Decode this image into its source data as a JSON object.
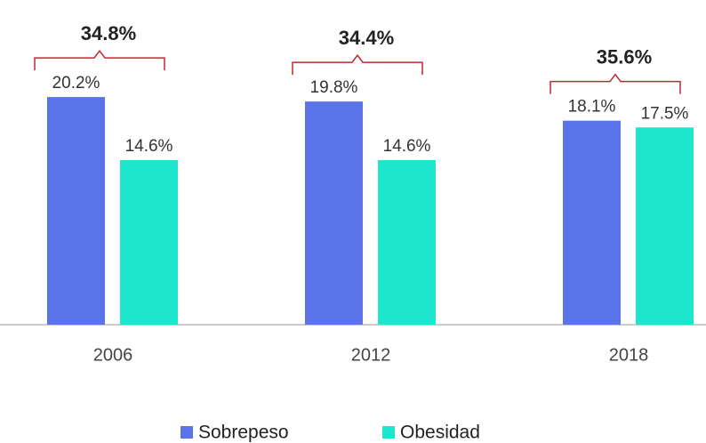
{
  "chart_data": {
    "type": "bar",
    "categories": [
      "2006",
      "2012",
      "2018"
    ],
    "series": [
      {
        "name": "Sobrepeso",
        "color": "#5b73e8",
        "values": [
          20.2,
          19.8,
          18.1
        ],
        "value_labels": [
          "20.2%",
          "19.8%",
          "18.1%"
        ]
      },
      {
        "name": "Obesidad",
        "color": "#1de6cc",
        "values": [
          14.6,
          14.6,
          17.5
        ],
        "value_labels": [
          "14.6%",
          "14.6%",
          "17.5%"
        ]
      }
    ],
    "totals": [
      34.8,
      34.4,
      35.6
    ],
    "total_labels": [
      "34.8%",
      "34.4%",
      "35.6%"
    ],
    "bracket_color": "#c0282d"
  }
}
